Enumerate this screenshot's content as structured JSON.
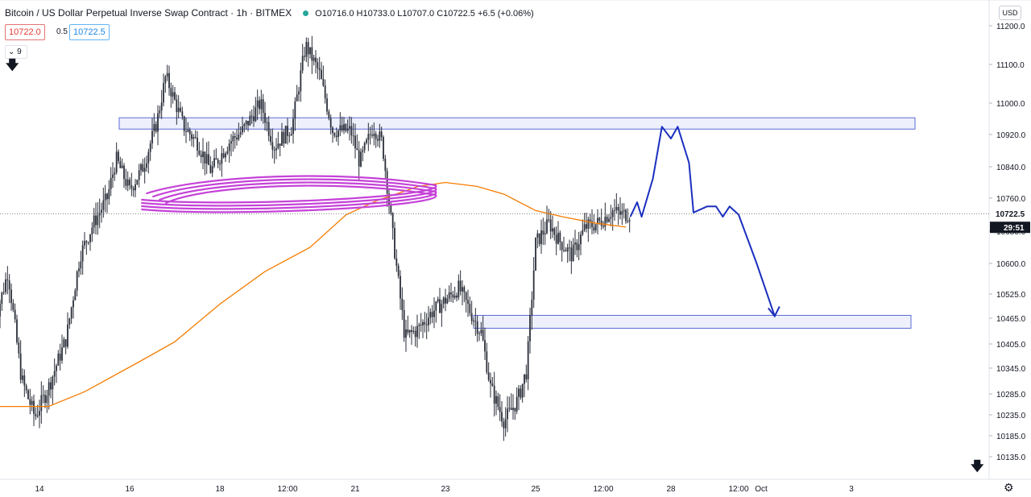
{
  "header": {
    "title": "Bitcoin / US Dollar Perpetual Inverse Swap Contract · 1h · BITMEX",
    "ohlc": "O10716.0  H10733.0  L10707.0  C10722.5  +6.5 (+0.06%)",
    "bid": "10722.0",
    "spread": "0.5",
    "ask": "10722.5",
    "indicator_count": "9",
    "currency": "USD"
  },
  "chart_data": {
    "type": "candlestick",
    "x_ticks": [
      "14",
      "16",
      "18",
      "12:00",
      "21",
      "23",
      "25",
      "12:00",
      "28",
      "12:00",
      "Oct",
      "3"
    ],
    "y_ticks": [
      "11200.0",
      "11100.0",
      "11000.0",
      "10920.0",
      "10840.0",
      "10760.0",
      "10680.0",
      "10600.0",
      "10525.0",
      "10465.0",
      "10405.0",
      "10345.0",
      "10285.0",
      "10235.0",
      "10185.0",
      "10135.0"
    ],
    "last_price": "10722.5",
    "countdown": "29:51",
    "price_path": [
      [
        13.0,
        10450
      ],
      [
        13.3,
        10580
      ],
      [
        13.6,
        10320
      ],
      [
        13.9,
        10230
      ],
      [
        14.2,
        10300
      ],
      [
        14.6,
        10420
      ],
      [
        14.9,
        10620
      ],
      [
        15.2,
        10700
      ],
      [
        15.5,
        10760
      ],
      [
        15.7,
        10860
      ],
      [
        16.0,
        10780
      ],
      [
        16.3,
        10840
      ],
      [
        16.6,
        10950
      ],
      [
        16.8,
        11070
      ],
      [
        17.2,
        10940
      ],
      [
        17.5,
        10900
      ],
      [
        17.8,
        10830
      ],
      [
        18.2,
        10900
      ],
      [
        18.5,
        10930
      ],
      [
        18.9,
        11000
      ],
      [
        19.2,
        10890
      ],
      [
        19.6,
        10940
      ],
      [
        19.9,
        11150
      ],
      [
        20.2,
        11080
      ],
      [
        20.5,
        10930
      ],
      [
        20.9,
        10930
      ],
      [
        21.1,
        10850
      ],
      [
        21.4,
        10940
      ],
      [
        21.6,
        10900
      ],
      [
        21.8,
        10700
      ],
      [
        22.1,
        10420
      ],
      [
        22.4,
        10440
      ],
      [
        22.7,
        10480
      ],
      [
        23.0,
        10510
      ],
      [
        23.3,
        10540
      ],
      [
        23.6,
        10470
      ],
      [
        23.8,
        10430
      ],
      [
        24.0,
        10300
      ],
      [
        24.3,
        10220
      ],
      [
        24.6,
        10270
      ],
      [
        24.8,
        10340
      ],
      [
        25.0,
        10650
      ],
      [
        25.3,
        10700
      ],
      [
        25.5,
        10660
      ],
      [
        25.8,
        10620
      ],
      [
        26.1,
        10690
      ],
      [
        26.4,
        10700
      ],
      [
        26.7,
        10730
      ],
      [
        26.9,
        10720
      ],
      [
        27.1,
        10722.5
      ]
    ],
    "moving_average": [
      [
        13.0,
        10255
      ],
      [
        14.2,
        10255
      ],
      [
        15.0,
        10290
      ],
      [
        16.2,
        10360
      ],
      [
        17.0,
        10410
      ],
      [
        18.0,
        10500
      ],
      [
        19.0,
        10580
      ],
      [
        20.0,
        10640
      ],
      [
        20.8,
        10720
      ],
      [
        21.5,
        10755
      ],
      [
        22.4,
        10790
      ],
      [
        23.0,
        10800
      ],
      [
        23.7,
        10790
      ],
      [
        24.3,
        10770
      ],
      [
        25.0,
        10730
      ],
      [
        25.6,
        10715
      ],
      [
        26.3,
        10700
      ],
      [
        27.0,
        10690
      ]
    ],
    "resistance_zone": {
      "from": 10920,
      "to": 10940,
      "x_start": 15.8,
      "x_end": 29.0
    },
    "support_zone": {
      "from": 10440,
      "to": 10470,
      "x_start": 24.0,
      "x_end": 29.0
    },
    "projection": [
      [
        27.1,
        10715
      ],
      [
        27.25,
        10750
      ],
      [
        27.35,
        10715
      ],
      [
        27.6,
        10810
      ],
      [
        27.8,
        10940
      ],
      [
        28.0,
        10910
      ],
      [
        28.15,
        10940
      ],
      [
        28.4,
        10850
      ],
      [
        28.5,
        10725
      ],
      [
        28.8,
        10740
      ],
      [
        29.0,
        10740
      ],
      [
        29.15,
        10715
      ],
      [
        29.3,
        10740
      ],
      [
        29.5,
        10720
      ],
      [
        29.9,
        10600
      ],
      [
        30.3,
        10470
      ]
    ],
    "colors": {
      "candles": "#2a2e39",
      "ma": "#f57c00",
      "zones_fill": "#eef1fb",
      "zones_border": "#5b6bd8",
      "projection": "#1b2fbf",
      "highlight": "#c542d8"
    }
  }
}
